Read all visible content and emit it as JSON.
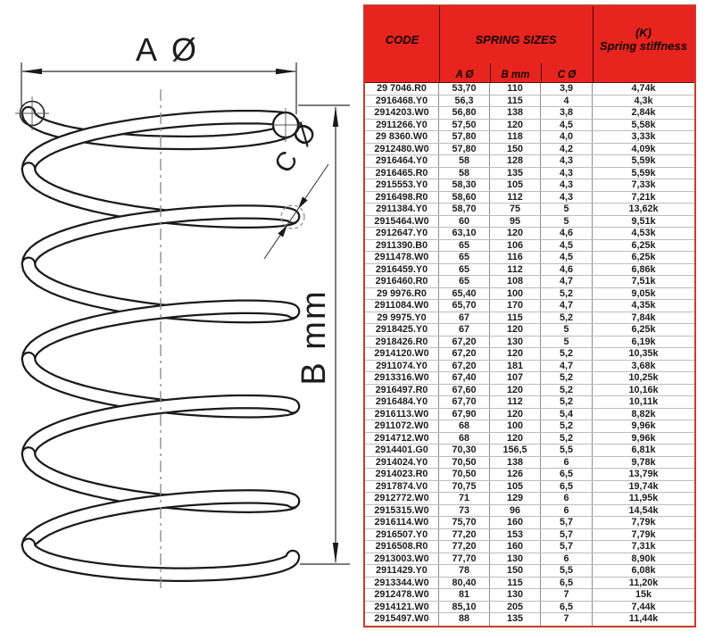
{
  "diagram": {
    "label_a": "A Ø",
    "label_b": "B mm",
    "label_c": "C Ø"
  },
  "table": {
    "header": {
      "code": "CODE",
      "sizes": "SPRING SIZES",
      "stiffness_line1": "(K)",
      "stiffness_line2": "Spring stiffness"
    },
    "subheader": [
      "A Ø",
      "B mm",
      "C Ø"
    ],
    "rows": [
      [
        "29 7046.R0",
        "53,70",
        "110",
        "3,9",
        "4,74k"
      ],
      [
        "2916468.Y0",
        "56,3",
        "115",
        "4",
        "4,3k"
      ],
      [
        "2914203.W0",
        "56,80",
        "138",
        "3,8",
        "2,84k"
      ],
      [
        "2911266.Y0",
        "57,50",
        "120",
        "4,5",
        "5,58k"
      ],
      [
        "29 8360.W0",
        "57,80",
        "118",
        "4,0",
        "3,33k"
      ],
      [
        "2912480.W0",
        "57,80",
        "150",
        "4,2",
        "4,09k"
      ],
      [
        "2916464.Y0",
        "58",
        "128",
        "4,3",
        "5,59k"
      ],
      [
        "2916465.R0",
        "58",
        "135",
        "4,3",
        "5,59k"
      ],
      [
        "2915553.Y0",
        "58,30",
        "105",
        "4,3",
        "7,33k"
      ],
      [
        "2916498.R0",
        "58,60",
        "112",
        "4,3",
        "7,21k"
      ],
      [
        "2911384.Y0",
        "58,70",
        "75",
        "5",
        "13,62k"
      ],
      [
        "2915464.W0",
        "60",
        "95",
        "5",
        "9,51k"
      ],
      [
        "2912647.Y0",
        "63,10",
        "120",
        "4,6",
        "4,53k"
      ],
      [
        "2911390.B0",
        "65",
        "106",
        "4,5",
        "6,25k"
      ],
      [
        "2911478.W0",
        "65",
        "116",
        "4,5",
        "6,25k"
      ],
      [
        "2916459.Y0",
        "65",
        "112",
        "4,6",
        "6,86k"
      ],
      [
        "2916460.R0",
        "65",
        "108",
        "4,7",
        "7,51k"
      ],
      [
        "29 9976.R0",
        "65,40",
        "100",
        "5,2",
        "9,05k"
      ],
      [
        "2911084.W0",
        "65,70",
        "170",
        "4,7",
        "4,35k"
      ],
      [
        "29 9975.Y0",
        "67",
        "115",
        "5,2",
        "7,84k"
      ],
      [
        "2918425.Y0",
        "67",
        "120",
        "5",
        "6,25k"
      ],
      [
        "2918426.R0",
        "67,20",
        "130",
        "5",
        "6,19k"
      ],
      [
        "2914120.W0",
        "67,20",
        "120",
        "5,2",
        "10,35k"
      ],
      [
        "2911074.Y0",
        "67,20",
        "181",
        "4,7",
        "3,68k"
      ],
      [
        "2913316.W0",
        "67,40",
        "107",
        "5,2",
        "10,25k"
      ],
      [
        "2916497.R0",
        "67,60",
        "120",
        "5,2",
        "10,16k"
      ],
      [
        "2916484.Y0",
        "67,70",
        "112",
        "5,2",
        "10,11k"
      ],
      [
        "2916113.W0",
        "67,90",
        "120",
        "5,4",
        "8,82k"
      ],
      [
        "2911072.W0",
        "68",
        "100",
        "5,2",
        "9,96k"
      ],
      [
        "2914712.W0",
        "68",
        "120",
        "5,2",
        "9,96k"
      ],
      [
        "2914401.G0",
        "70,30",
        "156,5",
        "5,5",
        "6,81k"
      ],
      [
        "2914024.Y0",
        "70,50",
        "138",
        "6",
        "9,78k"
      ],
      [
        "2914023.R0",
        "70,50",
        "126",
        "6,5",
        "13,79k"
      ],
      [
        "2917874.V0",
        "70,75",
        "105",
        "6,5",
        "19,74k"
      ],
      [
        "2912772.W0",
        "71",
        "129",
        "6",
        "11,95k"
      ],
      [
        "2915315.W0",
        "73",
        "96",
        "6",
        "14,54k"
      ],
      [
        "2916114.W0",
        "75,70",
        "160",
        "5,7",
        "7,79k"
      ],
      [
        "2916507.Y0",
        "77,20",
        "153",
        "5,7",
        "7,79k"
      ],
      [
        "2916508.R0",
        "77,20",
        "160",
        "5,7",
        "7,31k"
      ],
      [
        "2913003.W0",
        "77,70",
        "130",
        "6",
        "8,90k"
      ],
      [
        "2911429.Y0",
        "78",
        "150",
        "5,5",
        "6,08k"
      ],
      [
        "2913344.W0",
        "80,40",
        "115",
        "6,5",
        "11,20k"
      ],
      [
        "2912478.W0",
        "81",
        "130",
        "7",
        "15k"
      ],
      [
        "2914121.W0",
        "85,10",
        "205",
        "6,5",
        "7,44k"
      ],
      [
        "2915497.W0",
        "88",
        "135",
        "7",
        "11,44k"
      ]
    ]
  },
  "colors": {
    "header_red": "#e8241f",
    "table_border_red": "#cb3a2c",
    "line_black": "#1a1a1a"
  }
}
